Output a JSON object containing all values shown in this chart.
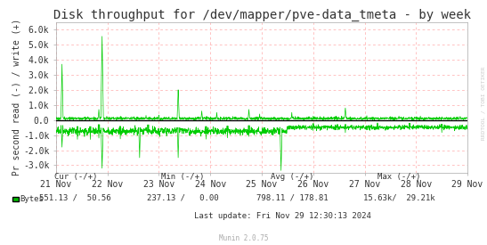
{
  "title": "Disk throughput for /dev/mapper/pve-data_tmeta - by week",
  "ylabel": "Pr second read (-) / write (+)",
  "watermark": "Munin 2.0.75",
  "rotated_label": "RRDTOOL / TOBI OETIKER",
  "xticklabels": [
    "21 Nov",
    "22 Nov",
    "23 Nov",
    "24 Nov",
    "25 Nov",
    "26 Nov",
    "27 Nov",
    "28 Nov",
    "29 Nov"
  ],
  "yticks_val": [
    -3000,
    -2000,
    -1000,
    0,
    1000,
    2000,
    3000,
    4000,
    5000,
    6000
  ],
  "yticklabels": [
    "-3.0k",
    "-2.0k",
    "-1.0k",
    "0.0",
    "1.0k",
    "2.0k",
    "3.0k",
    "4.0k",
    "5.0k",
    "6.0k"
  ],
  "ylim": [
    -3500,
    6500
  ],
  "bg_color": "#ffffff",
  "plot_bg_color": "#ffffff",
  "grid_color": "#ffaaaa",
  "line_color": "#00cc00",
  "zero_line_color": "#000000",
  "legend_sq_color": "#00bb00",
  "stats_cur": "Cur (-/+)",
  "stats_min": "Min (-/+)",
  "stats_avg": "Avg (-/+)",
  "stats_max": "Max (-/+)",
  "stats_row2": "551.13 /  50.56",
  "stats_row2_min": "237.13 /   0.00",
  "stats_row2_avg": "798.11 / 178.81",
  "stats_row2_max": "15.63k/  29.21k",
  "stats_lastupdate": "Last update: Fri Nov 29 12:30:13 2024",
  "title_fontsize": 10,
  "tick_fontsize": 7,
  "ylabel_fontsize": 7,
  "N": 1920
}
